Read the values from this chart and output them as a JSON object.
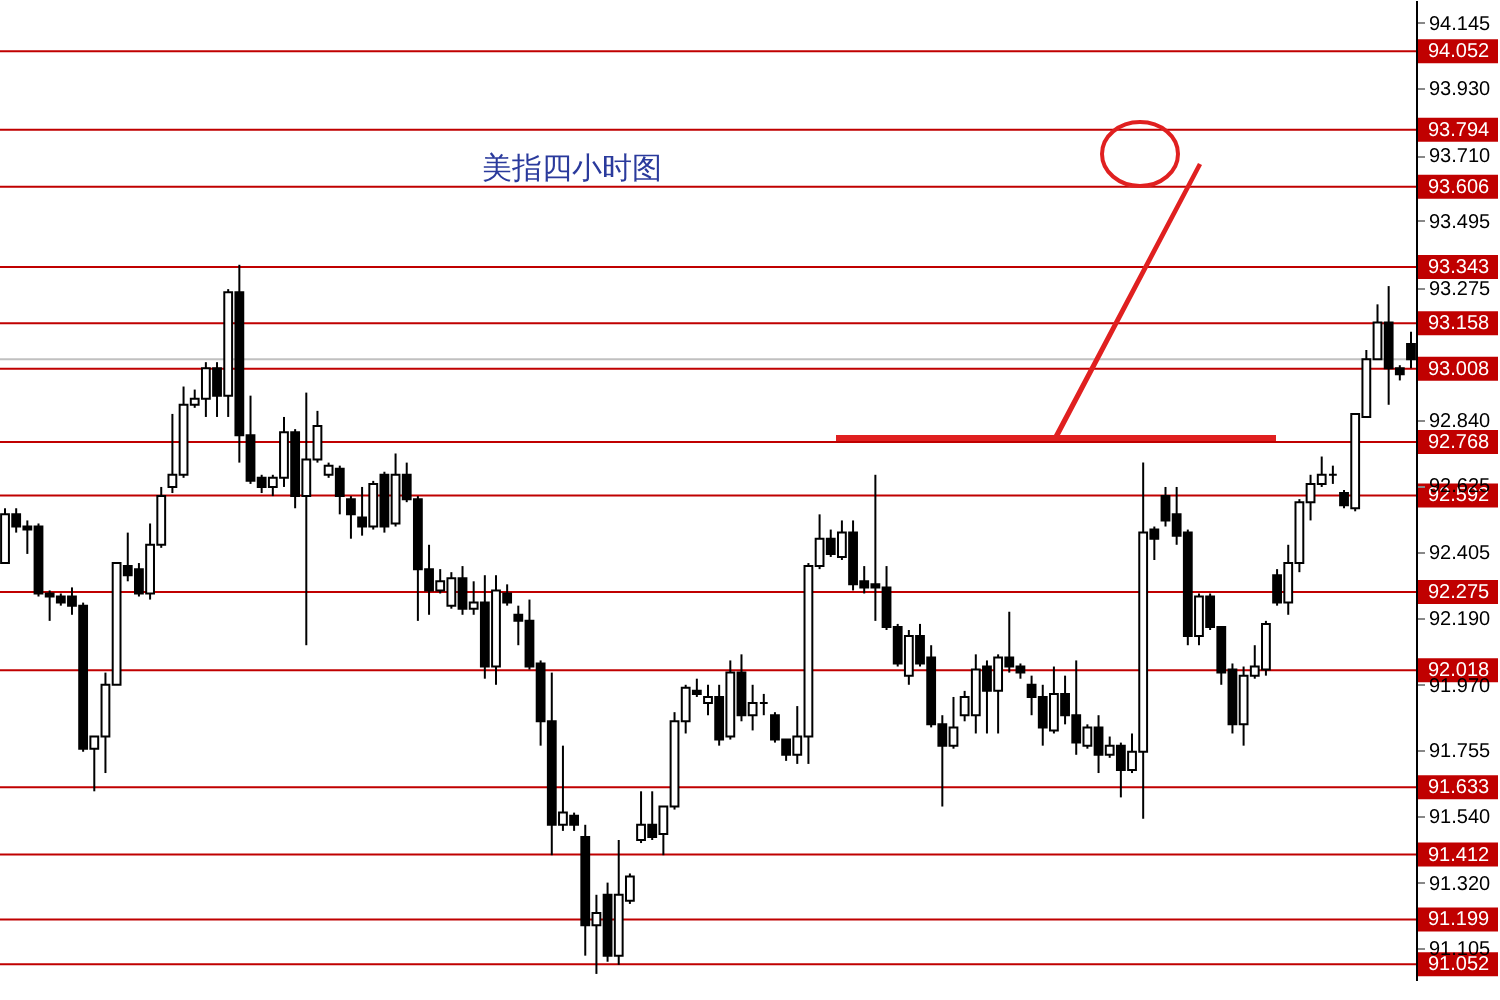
{
  "chart_data": {
    "type": "candlestick",
    "title": "美指四小时图",
    "categories": [
      null,
      null,
      null,
      null,
      null,
      null,
      null,
      null,
      null,
      null,
      null,
      null,
      null,
      null,
      null,
      null,
      null,
      null,
      null,
      null,
      null,
      null,
      null,
      null,
      null,
      null,
      null,
      null,
      null,
      null,
      null,
      null,
      null,
      null,
      null,
      null,
      null,
      null,
      null,
      null,
      null,
      null,
      null,
      null,
      null,
      null,
      null,
      null,
      null,
      null,
      null,
      null,
      null,
      null,
      null,
      null,
      null,
      null,
      null,
      null,
      null,
      null,
      null,
      null,
      null,
      null,
      null,
      null,
      null,
      null,
      null,
      null,
      null,
      null,
      null,
      null,
      null,
      null,
      null,
      null,
      null,
      null,
      null,
      null,
      null,
      null,
      null,
      null,
      null,
      null,
      null,
      null,
      null,
      null,
      null,
      null,
      null,
      null,
      null,
      null,
      null,
      null,
      null,
      null,
      null,
      null,
      null,
      null,
      null,
      null,
      null,
      null,
      null,
      null,
      null,
      null,
      null,
      null,
      null,
      null,
      null,
      null,
      null,
      null,
      null,
      null,
      null
    ],
    "ohlc": [
      [
        92.37,
        92.55,
        92.37,
        92.53
      ],
      [
        92.53,
        92.55,
        92.47,
        92.49
      ],
      [
        92.49,
        92.51,
        92.4,
        92.48
      ],
      [
        92.49,
        92.5,
        92.26,
        92.27
      ],
      [
        92.27,
        92.28,
        92.18,
        92.26
      ],
      [
        92.26,
        92.27,
        92.23,
        92.24
      ],
      [
        92.26,
        92.29,
        92.2,
        92.23
      ],
      [
        92.23,
        92.24,
        91.75,
        91.76
      ],
      [
        91.76,
        91.8,
        91.62,
        91.8
      ],
      [
        91.8,
        92.01,
        91.68,
        91.97
      ],
      [
        91.97,
        92.37,
        91.97,
        92.37
      ],
      [
        92.36,
        92.47,
        92.31,
        92.33
      ],
      [
        92.35,
        92.37,
        92.26,
        92.27
      ],
      [
        92.27,
        92.5,
        92.25,
        92.43
      ],
      [
        92.43,
        92.62,
        92.42,
        92.59
      ],
      [
        92.62,
        92.86,
        92.6,
        92.66
      ],
      [
        92.66,
        92.95,
        92.65,
        92.89
      ],
      [
        92.89,
        92.94,
        92.88,
        92.91
      ],
      [
        92.91,
        93.03,
        92.85,
        93.01
      ],
      [
        93.01,
        93.03,
        92.85,
        92.92
      ],
      [
        92.92,
        93.27,
        92.85,
        93.26
      ],
      [
        93.26,
        93.35,
        92.7,
        92.79
      ],
      [
        92.79,
        92.92,
        92.63,
        92.64
      ],
      [
        92.65,
        92.66,
        92.6,
        92.62
      ],
      [
        92.62,
        92.66,
        92.59,
        92.65
      ],
      [
        92.65,
        92.85,
        92.62,
        92.8
      ],
      [
        92.8,
        92.81,
        92.55,
        92.59
      ],
      [
        92.59,
        92.93,
        92.1,
        92.71
      ],
      [
        92.71,
        92.87,
        92.7,
        92.82
      ],
      [
        92.66,
        92.7,
        92.65,
        92.69
      ],
      [
        92.68,
        92.69,
        92.53,
        92.59
      ],
      [
        92.58,
        92.59,
        92.45,
        92.53
      ],
      [
        92.52,
        92.62,
        92.46,
        92.49
      ],
      [
        92.49,
        92.64,
        92.48,
        92.63
      ],
      [
        92.66,
        92.67,
        92.47,
        92.49
      ],
      [
        92.5,
        92.73,
        92.49,
        92.66
      ],
      [
        92.66,
        92.7,
        92.57,
        92.58
      ],
      [
        92.58,
        92.59,
        92.18,
        92.35
      ],
      [
        92.35,
        92.43,
        92.2,
        92.28
      ],
      [
        92.28,
        92.35,
        92.27,
        92.31
      ],
      [
        92.23,
        92.34,
        92.22,
        92.32
      ],
      [
        92.32,
        92.36,
        92.2,
        92.22
      ],
      [
        92.22,
        92.31,
        92.2,
        92.24
      ],
      [
        92.24,
        92.33,
        91.99,
        92.03
      ],
      [
        92.03,
        92.33,
        91.97,
        92.28
      ],
      [
        92.27,
        92.3,
        92.23,
        92.24
      ],
      [
        92.2,
        92.23,
        92.1,
        92.18
      ],
      [
        92.18,
        92.25,
        92.02,
        92.03
      ],
      [
        92.04,
        92.05,
        91.77,
        91.85
      ],
      [
        91.85,
        92.01,
        91.41,
        91.51
      ],
      [
        91.51,
        91.77,
        91.49,
        91.55
      ],
      [
        91.54,
        91.55,
        91.49,
        91.51
      ],
      [
        91.47,
        91.51,
        91.08,
        91.18
      ],
      [
        91.18,
        91.28,
        91.02,
        91.22
      ],
      [
        91.28,
        91.32,
        91.06,
        91.08
      ],
      [
        91.08,
        91.46,
        91.05,
        91.28
      ],
      [
        91.26,
        91.35,
        91.25,
        91.34
      ],
      [
        91.46,
        91.62,
        91.45,
        91.51
      ],
      [
        91.51,
        91.62,
        91.46,
        91.47
      ],
      [
        91.48,
        91.57,
        91.41,
        91.57
      ],
      [
        91.57,
        91.88,
        91.56,
        91.85
      ],
      [
        91.85,
        91.97,
        91.81,
        91.96
      ],
      [
        91.95,
        91.99,
        91.93,
        91.94
      ],
      [
        91.91,
        91.97,
        91.87,
        91.93
      ],
      [
        91.93,
        91.97,
        91.77,
        91.79
      ],
      [
        91.8,
        92.05,
        91.79,
        92.01
      ],
      [
        92.01,
        92.07,
        91.85,
        91.87
      ],
      [
        91.87,
        91.97,
        91.82,
        91.91
      ],
      [
        91.91,
        91.94,
        91.87,
        91.91
      ],
      [
        91.87,
        91.88,
        91.78,
        91.79
      ],
      [
        91.79,
        91.79,
        91.72,
        91.74
      ],
      [
        91.74,
        91.9,
        91.71,
        91.8
      ],
      [
        91.8,
        92.37,
        91.71,
        92.36
      ],
      [
        92.36,
        92.53,
        92.35,
        92.45
      ],
      [
        92.45,
        92.48,
        92.39,
        92.4
      ],
      [
        92.39,
        92.51,
        92.38,
        92.47
      ],
      [
        92.47,
        92.51,
        92.28,
        92.3
      ],
      [
        92.31,
        92.36,
        92.27,
        92.29
      ],
      [
        92.3,
        92.66,
        92.18,
        92.29
      ],
      [
        92.29,
        92.36,
        92.15,
        92.16
      ],
      [
        92.16,
        92.17,
        92.03,
        92.04
      ],
      [
        92.0,
        92.15,
        91.97,
        92.13
      ],
      [
        92.13,
        92.17,
        92.03,
        92.04
      ],
      [
        92.06,
        92.1,
        91.83,
        91.84
      ],
      [
        91.84,
        91.87,
        91.57,
        91.77
      ],
      [
        91.77,
        91.93,
        91.76,
        91.83
      ],
      [
        91.87,
        91.95,
        91.85,
        91.93
      ],
      [
        91.87,
        92.07,
        91.81,
        92.02
      ],
      [
        92.03,
        92.05,
        91.81,
        91.95
      ],
      [
        91.95,
        92.07,
        91.81,
        92.06
      ],
      [
        92.06,
        92.21,
        92.01,
        92.03
      ],
      [
        92.03,
        92.04,
        91.99,
        92.01
      ],
      [
        91.97,
        92.0,
        91.87,
        91.93
      ],
      [
        91.93,
        91.97,
        91.77,
        91.83
      ],
      [
        91.82,
        92.03,
        91.81,
        91.94
      ],
      [
        91.94,
        92.0,
        91.84,
        91.87
      ],
      [
        91.87,
        92.05,
        91.74,
        91.78
      ],
      [
        91.77,
        91.84,
        91.76,
        91.83
      ],
      [
        91.83,
        91.87,
        91.68,
        91.74
      ],
      [
        91.74,
        91.8,
        91.73,
        91.77
      ],
      [
        91.77,
        91.78,
        91.6,
        91.69
      ],
      [
        91.69,
        91.81,
        91.68,
        91.75
      ],
      [
        91.75,
        92.7,
        91.53,
        92.47
      ],
      [
        92.48,
        92.49,
        92.38,
        92.45
      ],
      [
        92.59,
        92.62,
        92.49,
        92.51
      ],
      [
        92.53,
        92.62,
        92.43,
        92.46
      ],
      [
        92.47,
        92.48,
        92.1,
        92.13
      ],
      [
        92.13,
        92.27,
        92.1,
        92.26
      ],
      [
        92.26,
        92.27,
        92.15,
        92.16
      ],
      [
        92.16,
        92.16,
        91.97,
        92.01
      ],
      [
        92.02,
        92.04,
        91.81,
        91.84
      ],
      [
        91.84,
        92.03,
        91.77,
        92.0
      ],
      [
        92.0,
        92.1,
        91.99,
        92.03
      ],
      [
        92.02,
        92.18,
        92.0,
        92.17
      ],
      [
        92.33,
        92.35,
        92.23,
        92.24
      ],
      [
        92.24,
        92.43,
        92.2,
        92.37
      ],
      [
        92.37,
        92.58,
        92.34,
        92.57
      ],
      [
        92.57,
        92.66,
        92.51,
        92.63
      ],
      [
        92.63,
        92.72,
        92.62,
        92.66
      ],
      [
        92.66,
        92.69,
        92.63,
        92.66
      ],
      [
        92.6,
        92.61,
        92.55,
        92.56
      ],
      [
        92.55,
        92.86,
        92.54,
        92.86
      ],
      [
        92.85,
        93.07,
        92.85,
        93.04
      ],
      [
        93.04,
        93.22,
        93.04,
        93.16
      ],
      [
        93.16,
        93.28,
        92.89,
        93.01
      ],
      [
        93.01,
        93.02,
        92.97,
        92.99
      ],
      [
        93.09,
        93.13,
        93.01,
        93.04
      ]
    ],
    "ylim": [
      91.0,
      94.22
    ],
    "yticks": [
      94.145,
      {
        "value": 93.93,
        "label": "93.930"
      },
      {
        "value": 93.71,
        "label": "93.710"
      },
      93.495,
      93.275,
      {
        "value": 92.84,
        "label": "92.840"
      },
      92.625,
      92.405,
      {
        "value": 92.19,
        "label": "92.190"
      },
      {
        "value": 91.97,
        "label": "91.970"
      },
      91.755,
      {
        "value": 91.54,
        "label": "91.540"
      },
      {
        "value": 91.32,
        "label": "91.320"
      },
      91.105
    ],
    "tick_labels": "y",
    "ref_lines": [
      {
        "axis": "y",
        "value": 94.052,
        "label": "94.052",
        "color": "#c00000"
      },
      {
        "axis": "y",
        "value": 93.794,
        "label": "93.794",
        "color": "#c00000"
      },
      {
        "axis": "y",
        "value": 93.606,
        "label": "93.606",
        "color": "#c00000"
      },
      {
        "axis": "y",
        "value": 93.343,
        "label": "93.343",
        "color": "#c00000"
      },
      {
        "axis": "y",
        "value": 93.158,
        "label": "93.158",
        "color": "#c00000"
      },
      {
        "axis": "y",
        "value": 93.04,
        "color": "#c0c0c0"
      },
      {
        "axis": "y",
        "value": 93.008,
        "label": "93.008",
        "color": "#c00000"
      },
      {
        "axis": "y",
        "value": 92.768,
        "label": "92.768",
        "color": "#c00000"
      },
      {
        "axis": "y",
        "value": 92.592,
        "label": "92.592",
        "color": "#c00000"
      },
      {
        "axis": "y",
        "value": 92.275,
        "label": "92.275",
        "color": "#c00000"
      },
      {
        "axis": "y",
        "value": 92.018,
        "label": "92.018",
        "color": "#c00000"
      },
      {
        "axis": "y",
        "value": 91.633,
        "label": "91.633",
        "color": "#c00000"
      },
      {
        "axis": "y",
        "value": 91.412,
        "label": "91.412",
        "color": "#c00000"
      },
      {
        "axis": "y",
        "value": 91.199,
        "label": "91.199",
        "color": "#c00000"
      },
      {
        "axis": "y",
        "value": 91.052,
        "label": "91.052",
        "color": "#c00000"
      }
    ]
  }
}
